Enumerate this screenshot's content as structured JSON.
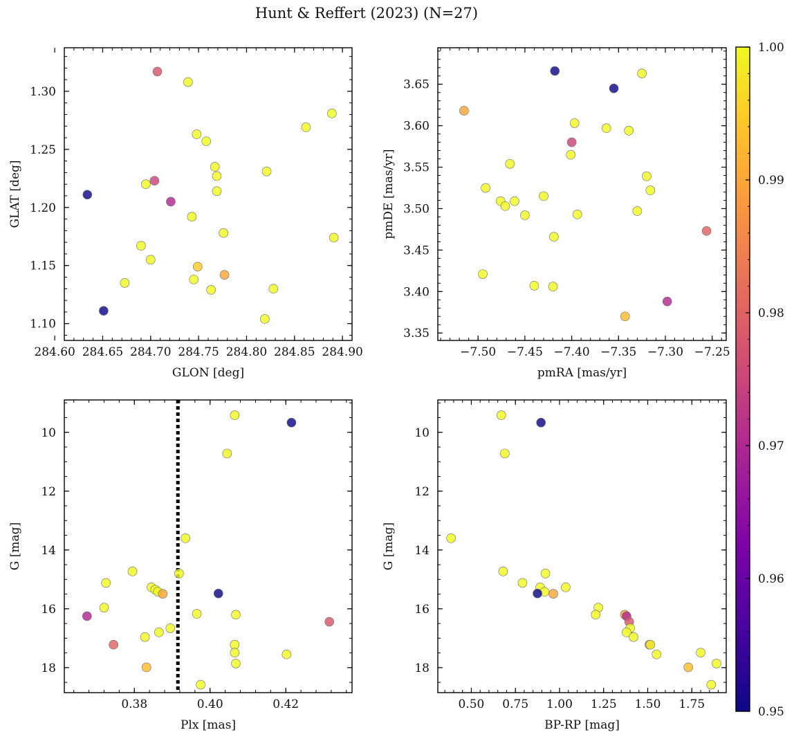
{
  "figure": {
    "title": "Hunt & Reffert (2023) (N=27)"
  },
  "colorbar": {
    "colormap": "plasma",
    "range": [
      0.95,
      1.0
    ],
    "ticks": [
      "0.95",
      "0.96",
      "0.97",
      "0.98",
      "0.99",
      "1.00"
    ]
  },
  "chart_data": [
    {
      "type": "scatter",
      "name": "sky",
      "xlabel": "GLON [deg]",
      "ylabel": "GLAT [deg]",
      "xlim": [
        284.61,
        284.91
      ],
      "ylim": [
        1.0855,
        1.3375
      ],
      "xticks": [
        284.6,
        284.65,
        284.7,
        284.75,
        284.8,
        284.85,
        284.9
      ],
      "xtick_labels": [
        "284.60",
        "284.65",
        "284.70",
        "284.75",
        "284.80",
        "284.85",
        "284.90"
      ],
      "yticks": [
        1.1,
        1.15,
        1.2,
        1.25,
        1.3
      ],
      "ytick_labels": [
        "1.10",
        "1.15",
        "1.20",
        "1.25",
        "1.30"
      ],
      "points": [
        {
          "x": 284.634,
          "y": 1.211,
          "c": 0.95
        },
        {
          "x": 284.651,
          "y": 1.111,
          "c": 0.95
        },
        {
          "x": 284.707,
          "y": 1.317,
          "c": 0.978
        },
        {
          "x": 284.739,
          "y": 1.308,
          "c": 1.0
        },
        {
          "x": 284.748,
          "y": 1.263,
          "c": 1.0
        },
        {
          "x": 284.758,
          "y": 1.257,
          "c": 1.0
        },
        {
          "x": 284.767,
          "y": 1.235,
          "c": 1.0
        },
        {
          "x": 284.769,
          "y": 1.227,
          "c": 1.0
        },
        {
          "x": 284.769,
          "y": 1.214,
          "c": 1.0
        },
        {
          "x": 284.704,
          "y": 1.223,
          "c": 0.975
        },
        {
          "x": 284.695,
          "y": 1.22,
          "c": 1.0
        },
        {
          "x": 284.721,
          "y": 1.205,
          "c": 0.97
        },
        {
          "x": 284.743,
          "y": 1.192,
          "c": 1.0
        },
        {
          "x": 284.776,
          "y": 1.178,
          "c": 1.0
        },
        {
          "x": 284.69,
          "y": 1.167,
          "c": 1.0
        },
        {
          "x": 284.7,
          "y": 1.155,
          "c": 1.0
        },
        {
          "x": 284.749,
          "y": 1.149,
          "c": 0.995
        },
        {
          "x": 284.777,
          "y": 1.142,
          "c": 0.99
        },
        {
          "x": 284.745,
          "y": 1.138,
          "c": 1.0
        },
        {
          "x": 284.673,
          "y": 1.135,
          "c": 1.0
        },
        {
          "x": 284.763,
          "y": 1.129,
          "c": 1.0
        },
        {
          "x": 284.821,
          "y": 1.231,
          "c": 1.0
        },
        {
          "x": 284.828,
          "y": 1.13,
          "c": 1.0
        },
        {
          "x": 284.819,
          "y": 1.104,
          "c": 1.0
        },
        {
          "x": 284.862,
          "y": 1.269,
          "c": 1.0
        },
        {
          "x": 284.889,
          "y": 1.281,
          "c": 1.0
        },
        {
          "x": 284.891,
          "y": 1.174,
          "c": 1.0
        }
      ]
    },
    {
      "type": "scatter",
      "name": "proper-motion",
      "xlabel": "pmRA [mas/yr]",
      "ylabel": "pmDE [mas/yr]",
      "xlim": [
        -7.543,
        -7.235
      ],
      "ylim": [
        3.341,
        3.694
      ],
      "xticks": [
        -7.5,
        -7.45,
        -7.4,
        -7.35,
        -7.3,
        -7.25
      ],
      "xtick_labels": [
        "−7.50",
        "−7.45",
        "−7.40",
        "−7.35",
        "−7.30",
        "−7.25"
      ],
      "yticks": [
        3.35,
        3.4,
        3.45,
        3.5,
        3.55,
        3.6,
        3.65
      ],
      "ytick_labels": [
        "3.35",
        "3.40",
        "3.45",
        "3.50",
        "3.55",
        "3.60",
        "3.65"
      ],
      "points": [
        {
          "x": -7.418,
          "y": 3.666,
          "c": 0.95
        },
        {
          "x": -7.355,
          "y": 3.645,
          "c": 0.95
        },
        {
          "x": -7.325,
          "y": 3.663,
          "c": 1.0
        },
        {
          "x": -7.515,
          "y": 3.618,
          "c": 0.99
        },
        {
          "x": -7.397,
          "y": 3.603,
          "c": 1.0
        },
        {
          "x": -7.363,
          "y": 3.597,
          "c": 1.0
        },
        {
          "x": -7.339,
          "y": 3.594,
          "c": 1.0
        },
        {
          "x": -7.4,
          "y": 3.58,
          "c": 0.975
        },
        {
          "x": -7.401,
          "y": 3.565,
          "c": 1.0
        },
        {
          "x": -7.466,
          "y": 3.554,
          "c": 1.0
        },
        {
          "x": -7.32,
          "y": 3.539,
          "c": 1.0
        },
        {
          "x": -7.492,
          "y": 3.525,
          "c": 1.0
        },
        {
          "x": -7.316,
          "y": 3.522,
          "c": 1.0
        },
        {
          "x": -7.43,
          "y": 3.515,
          "c": 1.0
        },
        {
          "x": -7.476,
          "y": 3.509,
          "c": 1.0
        },
        {
          "x": -7.461,
          "y": 3.509,
          "c": 1.0
        },
        {
          "x": -7.471,
          "y": 3.503,
          "c": 1.0
        },
        {
          "x": -7.33,
          "y": 3.497,
          "c": 1.0
        },
        {
          "x": -7.45,
          "y": 3.492,
          "c": 1.0
        },
        {
          "x": -7.394,
          "y": 3.493,
          "c": 1.0
        },
        {
          "x": -7.256,
          "y": 3.473,
          "c": 0.98
        },
        {
          "x": -7.419,
          "y": 3.466,
          "c": 1.0
        },
        {
          "x": -7.495,
          "y": 3.421,
          "c": 1.0
        },
        {
          "x": -7.44,
          "y": 3.407,
          "c": 1.0
        },
        {
          "x": -7.42,
          "y": 3.406,
          "c": 1.0
        },
        {
          "x": -7.298,
          "y": 3.388,
          "c": 0.97
        },
        {
          "x": -7.343,
          "y": 3.37,
          "c": 0.993
        }
      ]
    },
    {
      "type": "scatter",
      "name": "parallax-magnitude",
      "xlabel": "Plx [mas]",
      "ylabel": "G [mag]",
      "xlim": [
        0.3615,
        0.4375
      ],
      "ylim": [
        18.85,
        8.9
      ],
      "y_inverted": true,
      "xticks": [
        0.38,
        0.4,
        0.42
      ],
      "xtick_labels": [
        "0.38",
        "0.40",
        "0.42"
      ],
      "yticks": [
        10,
        12,
        14,
        16,
        18
      ],
      "ytick_labels": [
        "10",
        "12",
        "14",
        "16",
        "18"
      ],
      "vline": {
        "x": 0.3915,
        "style": "dotted",
        "color": "#000000"
      },
      "points": [
        {
          "x": 0.4065,
          "y": 9.42,
          "c": 1.0
        },
        {
          "x": 0.4215,
          "y": 9.67,
          "c": 0.95
        },
        {
          "x": 0.4045,
          "y": 10.72,
          "c": 1.0
        },
        {
          "x": 0.3935,
          "y": 13.6,
          "c": 1.0
        },
        {
          "x": 0.3795,
          "y": 14.73,
          "c": 1.0
        },
        {
          "x": 0.3918,
          "y": 14.8,
          "c": 1.0
        },
        {
          "x": 0.3725,
          "y": 15.12,
          "c": 1.0
        },
        {
          "x": 0.3845,
          "y": 15.27,
          "c": 1.0
        },
        {
          "x": 0.3855,
          "y": 15.35,
          "c": 1.0
        },
        {
          "x": 0.3862,
          "y": 15.42,
          "c": 1.0
        },
        {
          "x": 0.3875,
          "y": 15.49,
          "c": 0.99
        },
        {
          "x": 0.4022,
          "y": 15.48,
          "c": 0.95
        },
        {
          "x": 0.372,
          "y": 15.96,
          "c": 1.0
        },
        {
          "x": 0.3965,
          "y": 16.17,
          "c": 1.0
        },
        {
          "x": 0.4068,
          "y": 16.2,
          "c": 1.0
        },
        {
          "x": 0.3675,
          "y": 16.25,
          "c": 0.97
        },
        {
          "x": 0.4315,
          "y": 16.44,
          "c": 0.978
        },
        {
          "x": 0.3895,
          "y": 16.66,
          "c": 1.0
        },
        {
          "x": 0.3865,
          "y": 16.8,
          "c": 1.0
        },
        {
          "x": 0.3828,
          "y": 16.96,
          "c": 1.0
        },
        {
          "x": 0.3745,
          "y": 17.22,
          "c": 0.98
        },
        {
          "x": 0.4065,
          "y": 17.22,
          "c": 1.0
        },
        {
          "x": 0.4065,
          "y": 17.49,
          "c": 1.0
        },
        {
          "x": 0.4202,
          "y": 17.55,
          "c": 1.0
        },
        {
          "x": 0.4068,
          "y": 17.86,
          "c": 1.0
        },
        {
          "x": 0.3832,
          "y": 17.99,
          "c": 0.993
        },
        {
          "x": 0.3975,
          "y": 18.58,
          "c": 1.0
        }
      ]
    },
    {
      "type": "scatter",
      "name": "color-magnitude",
      "xlabel": "BP-RP [mag]",
      "ylabel": "G [mag]",
      "xlim": [
        0.31,
        1.945
      ],
      "ylim": [
        18.85,
        8.9
      ],
      "y_inverted": true,
      "xticks": [
        0.5,
        0.75,
        1.0,
        1.25,
        1.5,
        1.75
      ],
      "xtick_labels": [
        "0.50",
        "0.75",
        "1.00",
        "1.25",
        "1.50",
        "1.75"
      ],
      "yticks": [
        10,
        12,
        14,
        16,
        18
      ],
      "ytick_labels": [
        "10",
        "12",
        "14",
        "16",
        "18"
      ],
      "points": [
        {
          "x": 0.67,
          "y": 9.42,
          "c": 1.0
        },
        {
          "x": 0.895,
          "y": 9.67,
          "c": 0.95
        },
        {
          "x": 0.69,
          "y": 10.72,
          "c": 1.0
        },
        {
          "x": 0.385,
          "y": 13.6,
          "c": 1.0
        },
        {
          "x": 0.68,
          "y": 14.73,
          "c": 1.0
        },
        {
          "x": 0.92,
          "y": 14.8,
          "c": 1.0
        },
        {
          "x": 0.79,
          "y": 15.12,
          "c": 1.0
        },
        {
          "x": 0.89,
          "y": 15.27,
          "c": 1.0
        },
        {
          "x": 1.035,
          "y": 15.27,
          "c": 1.0
        },
        {
          "x": 0.915,
          "y": 15.42,
          "c": 1.0
        },
        {
          "x": 0.875,
          "y": 15.48,
          "c": 0.95
        },
        {
          "x": 0.965,
          "y": 15.49,
          "c": 0.99
        },
        {
          "x": 1.22,
          "y": 15.96,
          "c": 1.0
        },
        {
          "x": 1.205,
          "y": 16.2,
          "c": 1.0
        },
        {
          "x": 1.37,
          "y": 16.2,
          "c": 0.99
        },
        {
          "x": 1.38,
          "y": 16.25,
          "c": 0.97
        },
        {
          "x": 1.395,
          "y": 16.44,
          "c": 0.978
        },
        {
          "x": 1.4,
          "y": 16.66,
          "c": 1.0
        },
        {
          "x": 1.38,
          "y": 16.8,
          "c": 1.0
        },
        {
          "x": 1.42,
          "y": 16.96,
          "c": 1.0
        },
        {
          "x": 1.51,
          "y": 17.22,
          "c": 0.98
        },
        {
          "x": 1.515,
          "y": 17.22,
          "c": 1.0
        },
        {
          "x": 1.8,
          "y": 17.49,
          "c": 1.0
        },
        {
          "x": 1.55,
          "y": 17.55,
          "c": 1.0
        },
        {
          "x": 1.89,
          "y": 17.86,
          "c": 1.0
        },
        {
          "x": 1.73,
          "y": 17.99,
          "c": 0.993
        },
        {
          "x": 1.86,
          "y": 18.58,
          "c": 1.0
        }
      ]
    }
  ]
}
